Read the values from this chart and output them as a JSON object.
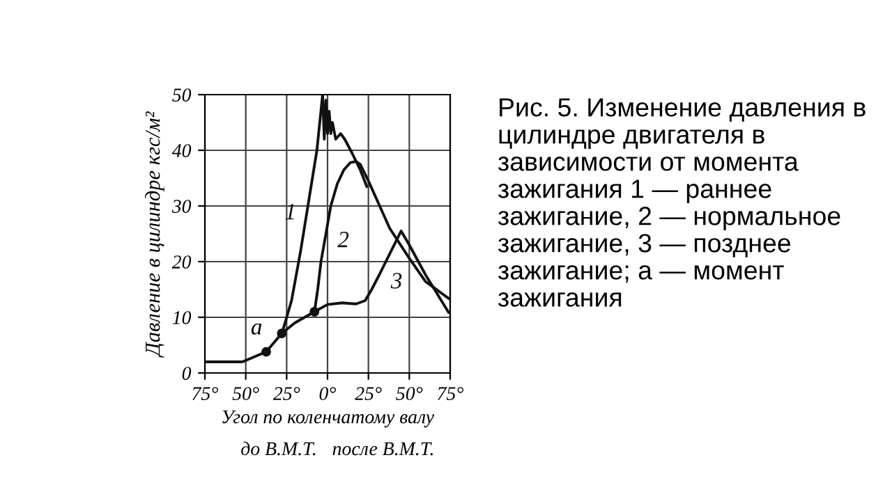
{
  "chart_data": {
    "type": "line",
    "xlabel": "Угол по коленчатому валу",
    "ylabel": "Давление в цилиндре кгс/м²",
    "xlim": [
      -75,
      75
    ],
    "ylim": [
      0,
      50
    ],
    "xticks": [
      {
        "value": -75,
        "label": "75°"
      },
      {
        "value": -50,
        "label": "50°"
      },
      {
        "value": -25,
        "label": "25°"
      },
      {
        "value": 0,
        "label": "0°"
      },
      {
        "value": 25,
        "label": "25°"
      },
      {
        "value": 50,
        "label": "50°"
      },
      {
        "value": 75,
        "label": "75°"
      }
    ],
    "yticks": [
      0,
      10,
      20,
      30,
      40,
      50
    ],
    "grid": true,
    "marker": "none",
    "line_style": "solid",
    "series": [
      {
        "name": "1",
        "color": "#111111",
        "x": [
          -28,
          -22,
          -16.4,
          -12,
          -6.5,
          -3,
          -2,
          -1,
          0,
          1,
          2,
          3,
          5,
          8,
          10.5,
          15,
          20,
          24
        ],
        "values": [
          7,
          13,
          22,
          30,
          40,
          50,
          42,
          49,
          43,
          47,
          43,
          45,
          42,
          43,
          42,
          39.5,
          36.5,
          33.5
        ]
      },
      {
        "name": "2",
        "color": "#111111",
        "x": [
          -8,
          -6,
          -4,
          -1,
          2,
          6,
          10,
          14,
          17.5,
          20,
          25,
          38,
          50,
          60,
          74
        ],
        "values": [
          11,
          15,
          20,
          25,
          30,
          34,
          36.5,
          37.8,
          38,
          37.5,
          34.5,
          26,
          20.6,
          16.4,
          13.4
        ]
      },
      {
        "name": "3",
        "color": "#111111",
        "x": [
          -75,
          -52,
          -48,
          -37.5,
          -28,
          -20,
          -8,
          0,
          9,
          17.5,
          23,
          27,
          31.6,
          38.7,
          45,
          50,
          60,
          74
        ],
        "values": [
          2,
          2,
          2.5,
          3.8,
          7.1,
          9,
          11,
          12.3,
          12.6,
          12.4,
          13,
          15,
          17.6,
          21.8,
          25.5,
          23,
          17.6,
          10.9
        ]
      },
      {
        "type": "scatter",
        "marker": "circle",
        "color": "#111111",
        "x": [
          -37.5,
          -28,
          -8
        ],
        "values": [
          3.8,
          7.1,
          11
        ]
      }
    ],
    "annotations": [
      {
        "text": "а",
        "x": -37.5,
        "y": 3.8
      },
      "до В.М.Т.",
      "после В.М.Т.",
      "Рис. 5. Изменение давления в цилиндре двигателя в зависимости от момента зажигания 1 — раннее зажигание, 2 — нормальное зажигание, 3 — позднее зажигание; а — момент зажигания"
    ]
  }
}
